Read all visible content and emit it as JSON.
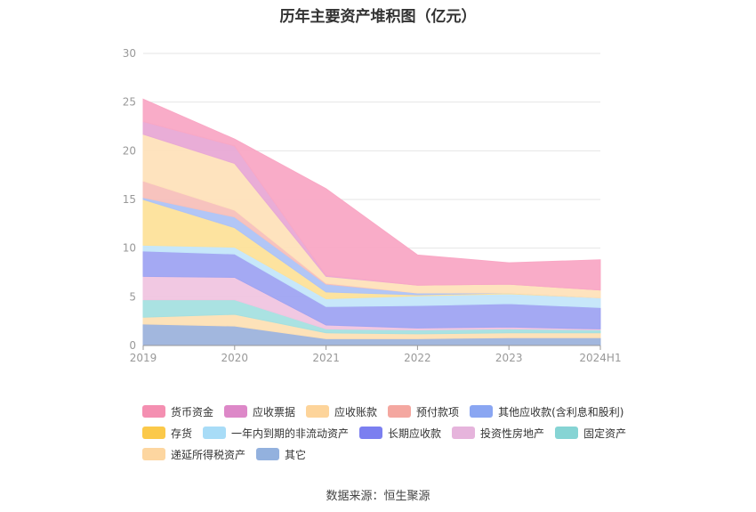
{
  "chart_data": {
    "type": "area",
    "title": "历年主要资产堆积图（亿元）",
    "categories": [
      "2019",
      "2020",
      "2021",
      "2022",
      "2023",
      "2024H1"
    ],
    "ylim": [
      0,
      30
    ],
    "yticks": [
      "0",
      "5",
      "10",
      "15",
      "20",
      "25",
      "30"
    ],
    "grid": true,
    "legend_position": "bottom",
    "stacked": true,
    "series": [
      {
        "name": "其它",
        "color": "#9db3dc",
        "values": [
          2.2,
          2.0,
          0.7,
          0.7,
          0.8,
          0.8
        ]
      },
      {
        "name": "递延所得税资产",
        "color": "#fde0b5",
        "values": [
          0.7,
          1.2,
          0.6,
          0.5,
          0.5,
          0.5
        ]
      },
      {
        "name": "固定资产",
        "color": "#a5e0e0",
        "values": [
          1.8,
          1.5,
          0.4,
          0.4,
          0.4,
          0.3
        ]
      },
      {
        "name": "投资性房地产",
        "color": "#f0c5e0",
        "values": [
          2.4,
          2.3,
          0.4,
          0.2,
          0.2,
          0.1
        ]
      },
      {
        "name": "长期应收款",
        "color": "#9fa4f2",
        "values": [
          2.6,
          2.4,
          1.9,
          2.3,
          2.4,
          2.2
        ]
      },
      {
        "name": "一年内到期的非流动资产",
        "color": "#c4e6fa",
        "values": [
          0.6,
          0.7,
          0.8,
          1.0,
          1.0,
          1.0
        ]
      },
      {
        "name": "存货",
        "color": "#fde29a",
        "values": [
          4.7,
          2.0,
          0.7,
          0.1,
          0.1,
          0.0
        ]
      },
      {
        "name": "其他应收款(含利息和股利)",
        "color": "#aec3f6",
        "values": [
          0.2,
          1.1,
          0.8,
          0.2,
          0.0,
          0.0
        ]
      },
      {
        "name": "预付款项",
        "color": "#f7c0bb",
        "values": [
          1.7,
          0.7,
          0.1,
          0.0,
          0.0,
          0.0
        ]
      },
      {
        "name": "应收账款",
        "color": "#fee2bb",
        "values": [
          4.8,
          4.8,
          0.7,
          0.8,
          0.9,
          0.8
        ]
      },
      {
        "name": "应收票据",
        "color": "#e8a9d5",
        "values": [
          1.3,
          1.8,
          0.1,
          0.0,
          0.0,
          0.0
        ]
      },
      {
        "name": "货币资金",
        "color": "#f9a8c5",
        "values": [
          2.3,
          0.7,
          8.9,
          3.1,
          2.2,
          3.1
        ]
      }
    ]
  },
  "legend": {
    "row1": [
      {
        "name": "货币资金",
        "color": "#f48fb1"
      },
      {
        "name": "应收票据",
        "color": "#dd88c8"
      },
      {
        "name": "应收账款",
        "color": "#fdd49a"
      },
      {
        "name": "预付款项",
        "color": "#f4a7a0"
      },
      {
        "name": "其他应收款(含利息和股利)",
        "color": "#8aa6f2"
      }
    ],
    "row2": [
      {
        "name": "存货",
        "color": "#fbc94a"
      },
      {
        "name": "一年内到期的非流动资产",
        "color": "#a8dcf7"
      },
      {
        "name": "长期应收款",
        "color": "#7b7ff0"
      },
      {
        "name": "投资性房地产",
        "color": "#e6b4dc"
      },
      {
        "name": "固定资产",
        "color": "#86d4d4"
      }
    ],
    "row3": [
      {
        "name": "递延所得税资产",
        "color": "#fdd6a0"
      },
      {
        "name": "其它",
        "color": "#93b1de"
      }
    ]
  },
  "source": "数据来源：恒生聚源"
}
